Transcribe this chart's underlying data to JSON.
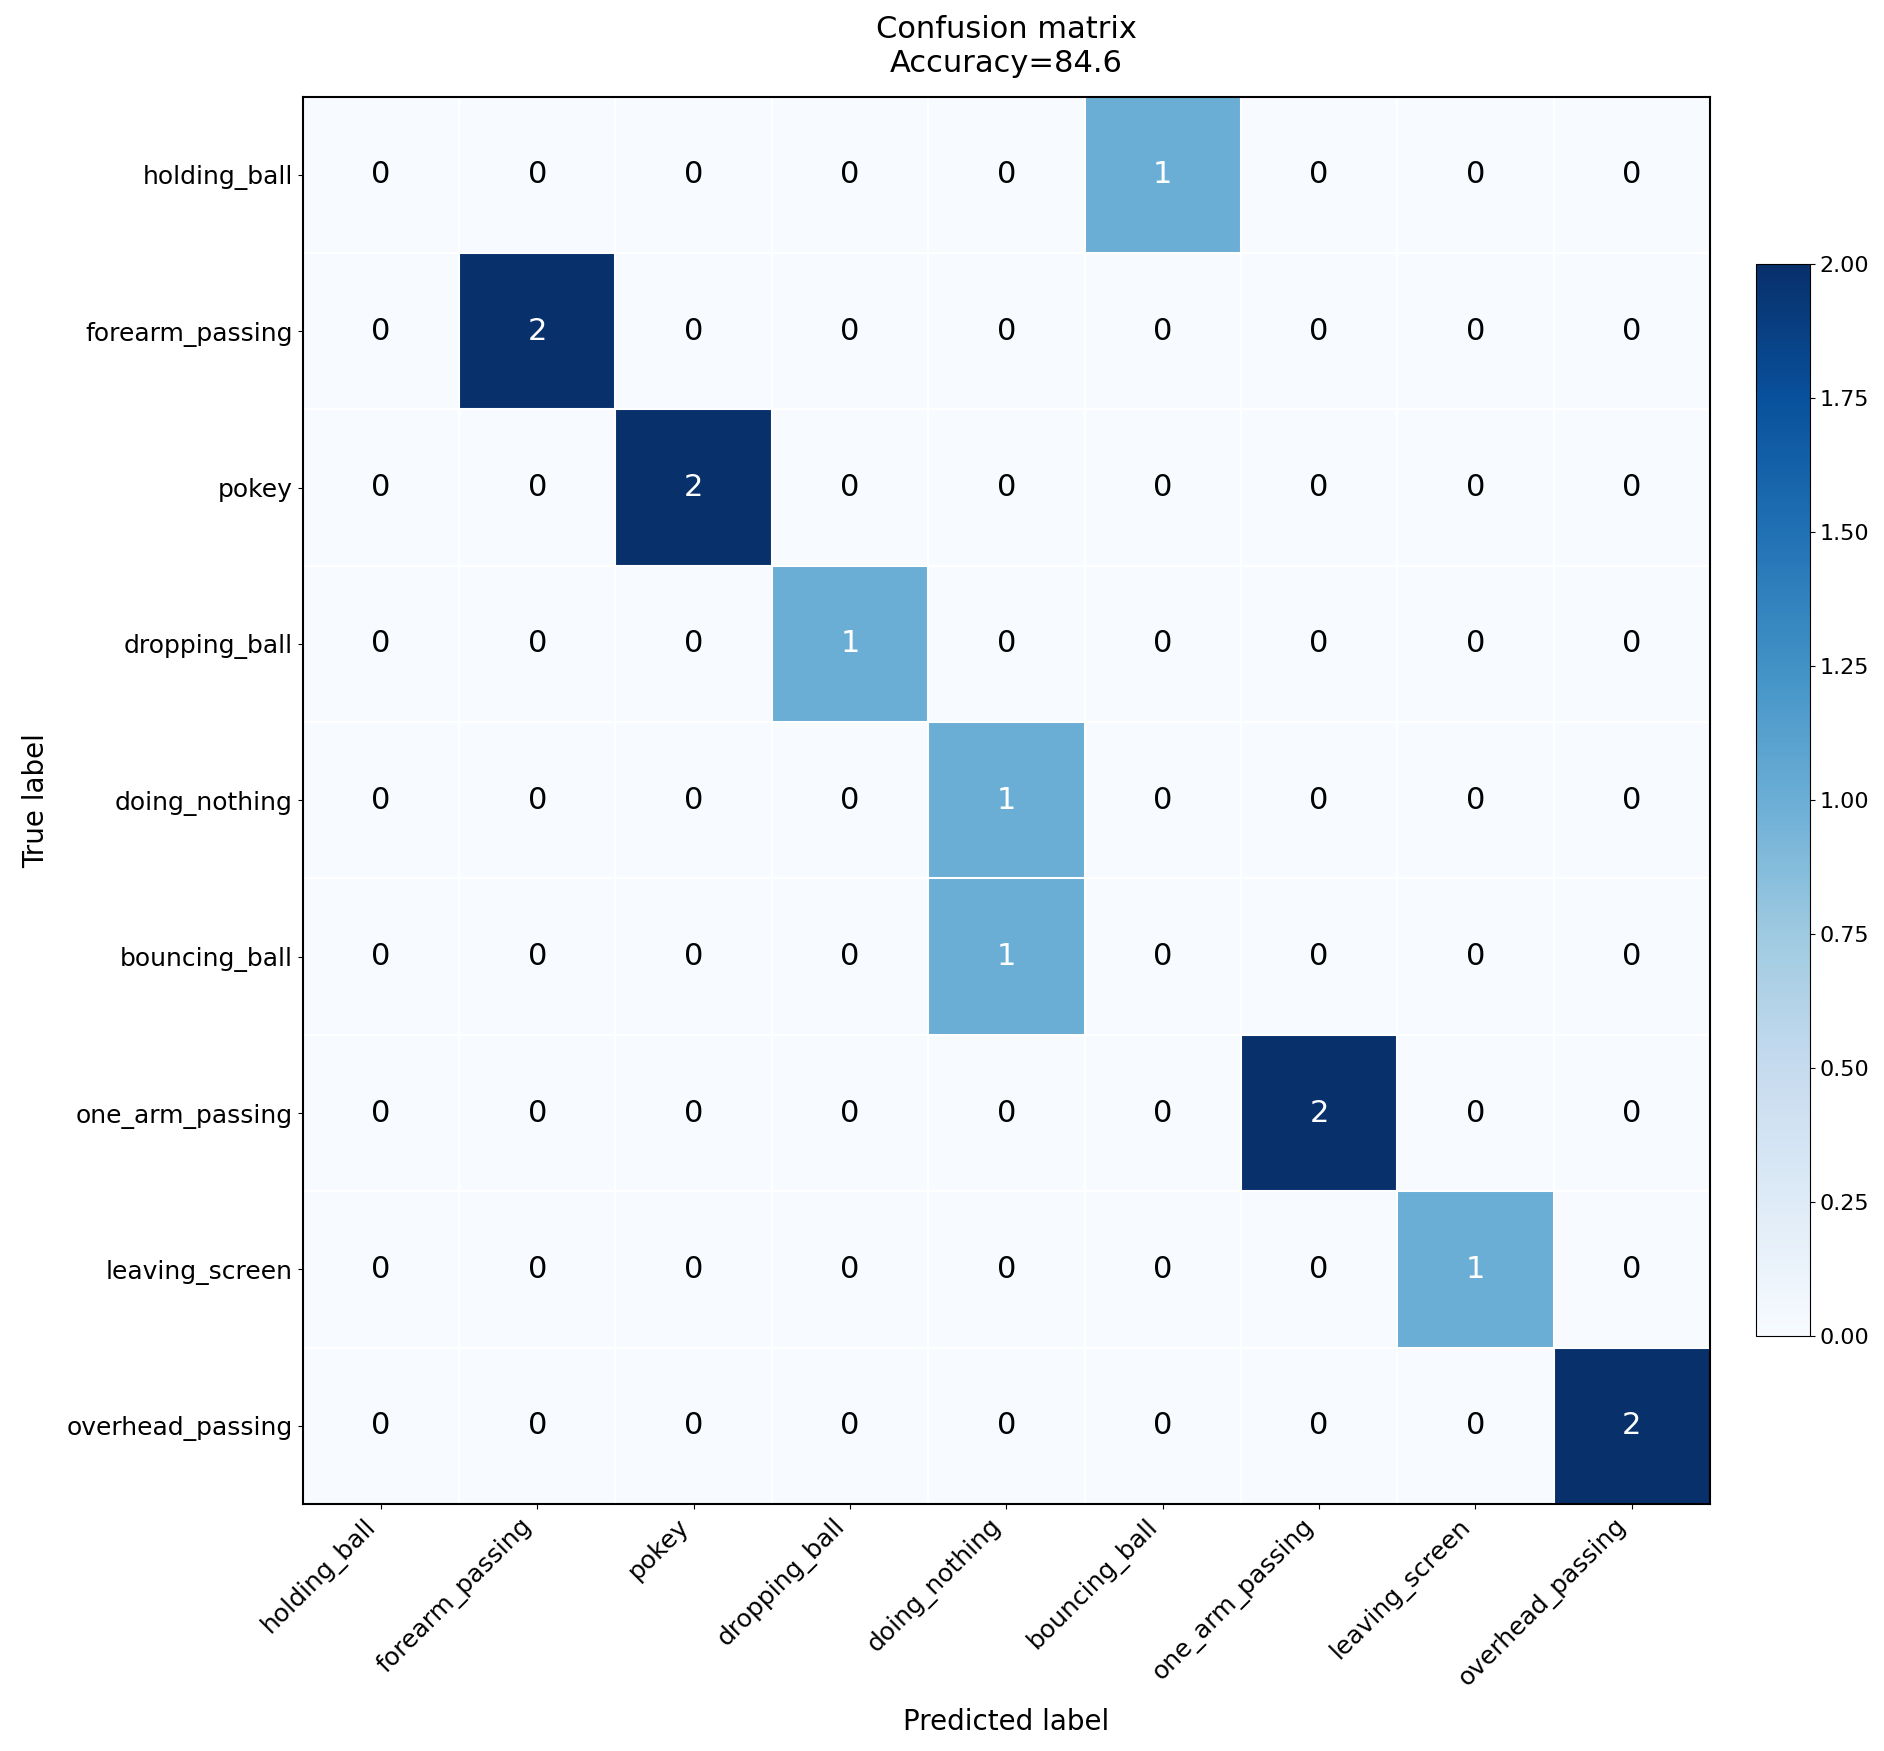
{
  "title": "Confusion matrix\nAccuracy=84.6",
  "xlabel": "Predicted label",
  "ylabel": "True label",
  "classes": [
    "holding_ball",
    "forearm_passing",
    "pokey",
    "dropping_ball",
    "doing_nothing",
    "bouncing_ball",
    "one_arm_passing",
    "leaving_screen",
    "overhead_passing"
  ],
  "matrix": [
    [
      0,
      0,
      0,
      0,
      0,
      1,
      0,
      0,
      0
    ],
    [
      0,
      2,
      0,
      0,
      0,
      0,
      0,
      0,
      0
    ],
    [
      0,
      0,
      2,
      0,
      0,
      0,
      0,
      0,
      0
    ],
    [
      0,
      0,
      0,
      1,
      0,
      0,
      0,
      0,
      0
    ],
    [
      0,
      0,
      0,
      0,
      1,
      0,
      0,
      0,
      0
    ],
    [
      0,
      0,
      0,
      0,
      1,
      0,
      0,
      0,
      0
    ],
    [
      0,
      0,
      0,
      0,
      0,
      0,
      2,
      0,
      0
    ],
    [
      0,
      0,
      0,
      0,
      0,
      0,
      0,
      1,
      0
    ],
    [
      0,
      0,
      0,
      0,
      0,
      0,
      0,
      0,
      2
    ]
  ],
  "cmap": "Blues",
  "vmin": 0,
  "vmax": 2,
  "colorbar_ticks": [
    0.0,
    0.25,
    0.5,
    0.75,
    1.0,
    1.25,
    1.5,
    1.75,
    2.0
  ],
  "text_color_threshold": 1.0,
  "title_fontsize": 22,
  "label_fontsize": 20,
  "tick_fontsize": 18,
  "cell_text_fontsize": 22,
  "colorbar_fontsize": 16,
  "fig_width": 18.84,
  "fig_height": 17.51,
  "dpi": 100
}
